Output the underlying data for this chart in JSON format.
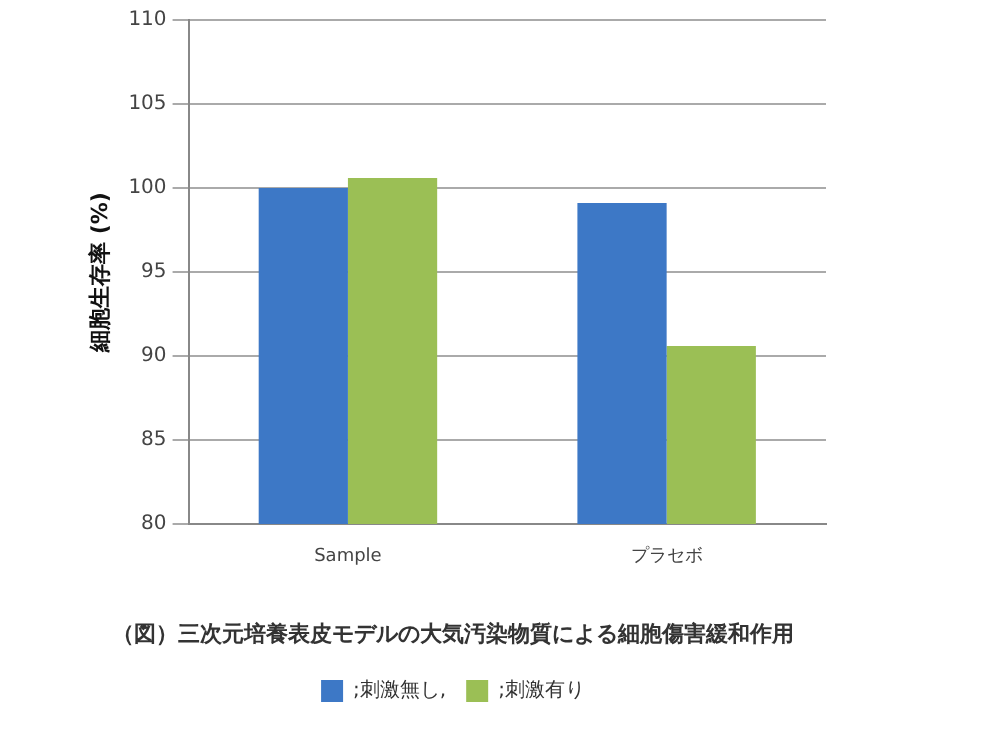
{
  "chart_data": {
    "type": "bar",
    "title": "（図）三次元培養表皮モデルの大気汚染物質による細胞傷害緩和作用",
    "ylabel": "細胞生存率 (%)",
    "categories": [
      "Sample",
      "プラセボ"
    ],
    "series": [
      {
        "name": ";刺激無し,",
        "color": "#3d78c6",
        "values": [
          100,
          99.1
        ]
      },
      {
        "name": ";刺激有り",
        "color": "#9bbf55",
        "values": [
          100.6,
          90.6
        ]
      }
    ],
    "ylim": [
      80,
      110
    ],
    "yticks": [
      80,
      85,
      90,
      95,
      100,
      105,
      110
    ],
    "grid": "y",
    "legend": "bottom"
  }
}
